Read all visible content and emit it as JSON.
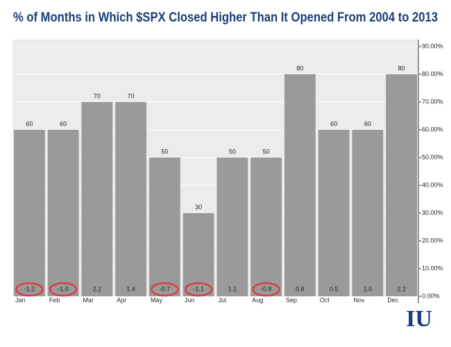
{
  "chart_data": {
    "type": "bar",
    "title": "% of  Months in Which $SPX Closed Higher Than It Opened From 2004 to 2013",
    "categories": [
      "Jan",
      "Feb",
      "Mar",
      "Apr",
      "May",
      "Jun",
      "Jul",
      "Aug",
      "Sep",
      "Oct",
      "Nov",
      "Dec"
    ],
    "values": [
      60,
      60,
      70,
      70,
      50,
      30,
      50,
      50,
      80,
      60,
      60,
      80
    ],
    "color": "#9a9a9a",
    "annotations": [
      "-1.2",
      "-1.0",
      "2.2",
      "1.4",
      "-0.7",
      "-1.1",
      "1.1",
      "-0.9",
      "0.8",
      "0.5",
      "1.0",
      "2.2"
    ],
    "highlighted": [
      true,
      true,
      false,
      false,
      true,
      true,
      false,
      true,
      false,
      false,
      false,
      false
    ],
    "highlight_color": "#e0393e",
    "ylim": [
      0,
      92.5
    ],
    "yticks": [
      {
        "value": 0,
        "label": "0.00%"
      },
      {
        "value": 10,
        "label": "10.00%"
      },
      {
        "value": 20,
        "label": "20.00%"
      },
      {
        "value": 30,
        "label": "30.00%"
      },
      {
        "value": 40,
        "label": "40.00%"
      },
      {
        "value": 50,
        "label": "50.00%"
      },
      {
        "value": 60,
        "label": "60.00%"
      },
      {
        "value": 70,
        "label": "70.00%"
      },
      {
        "value": 80,
        "label": "80.00%"
      },
      {
        "value": 90,
        "label": "90.00%"
      }
    ],
    "grid": true,
    "logo": "IU"
  }
}
